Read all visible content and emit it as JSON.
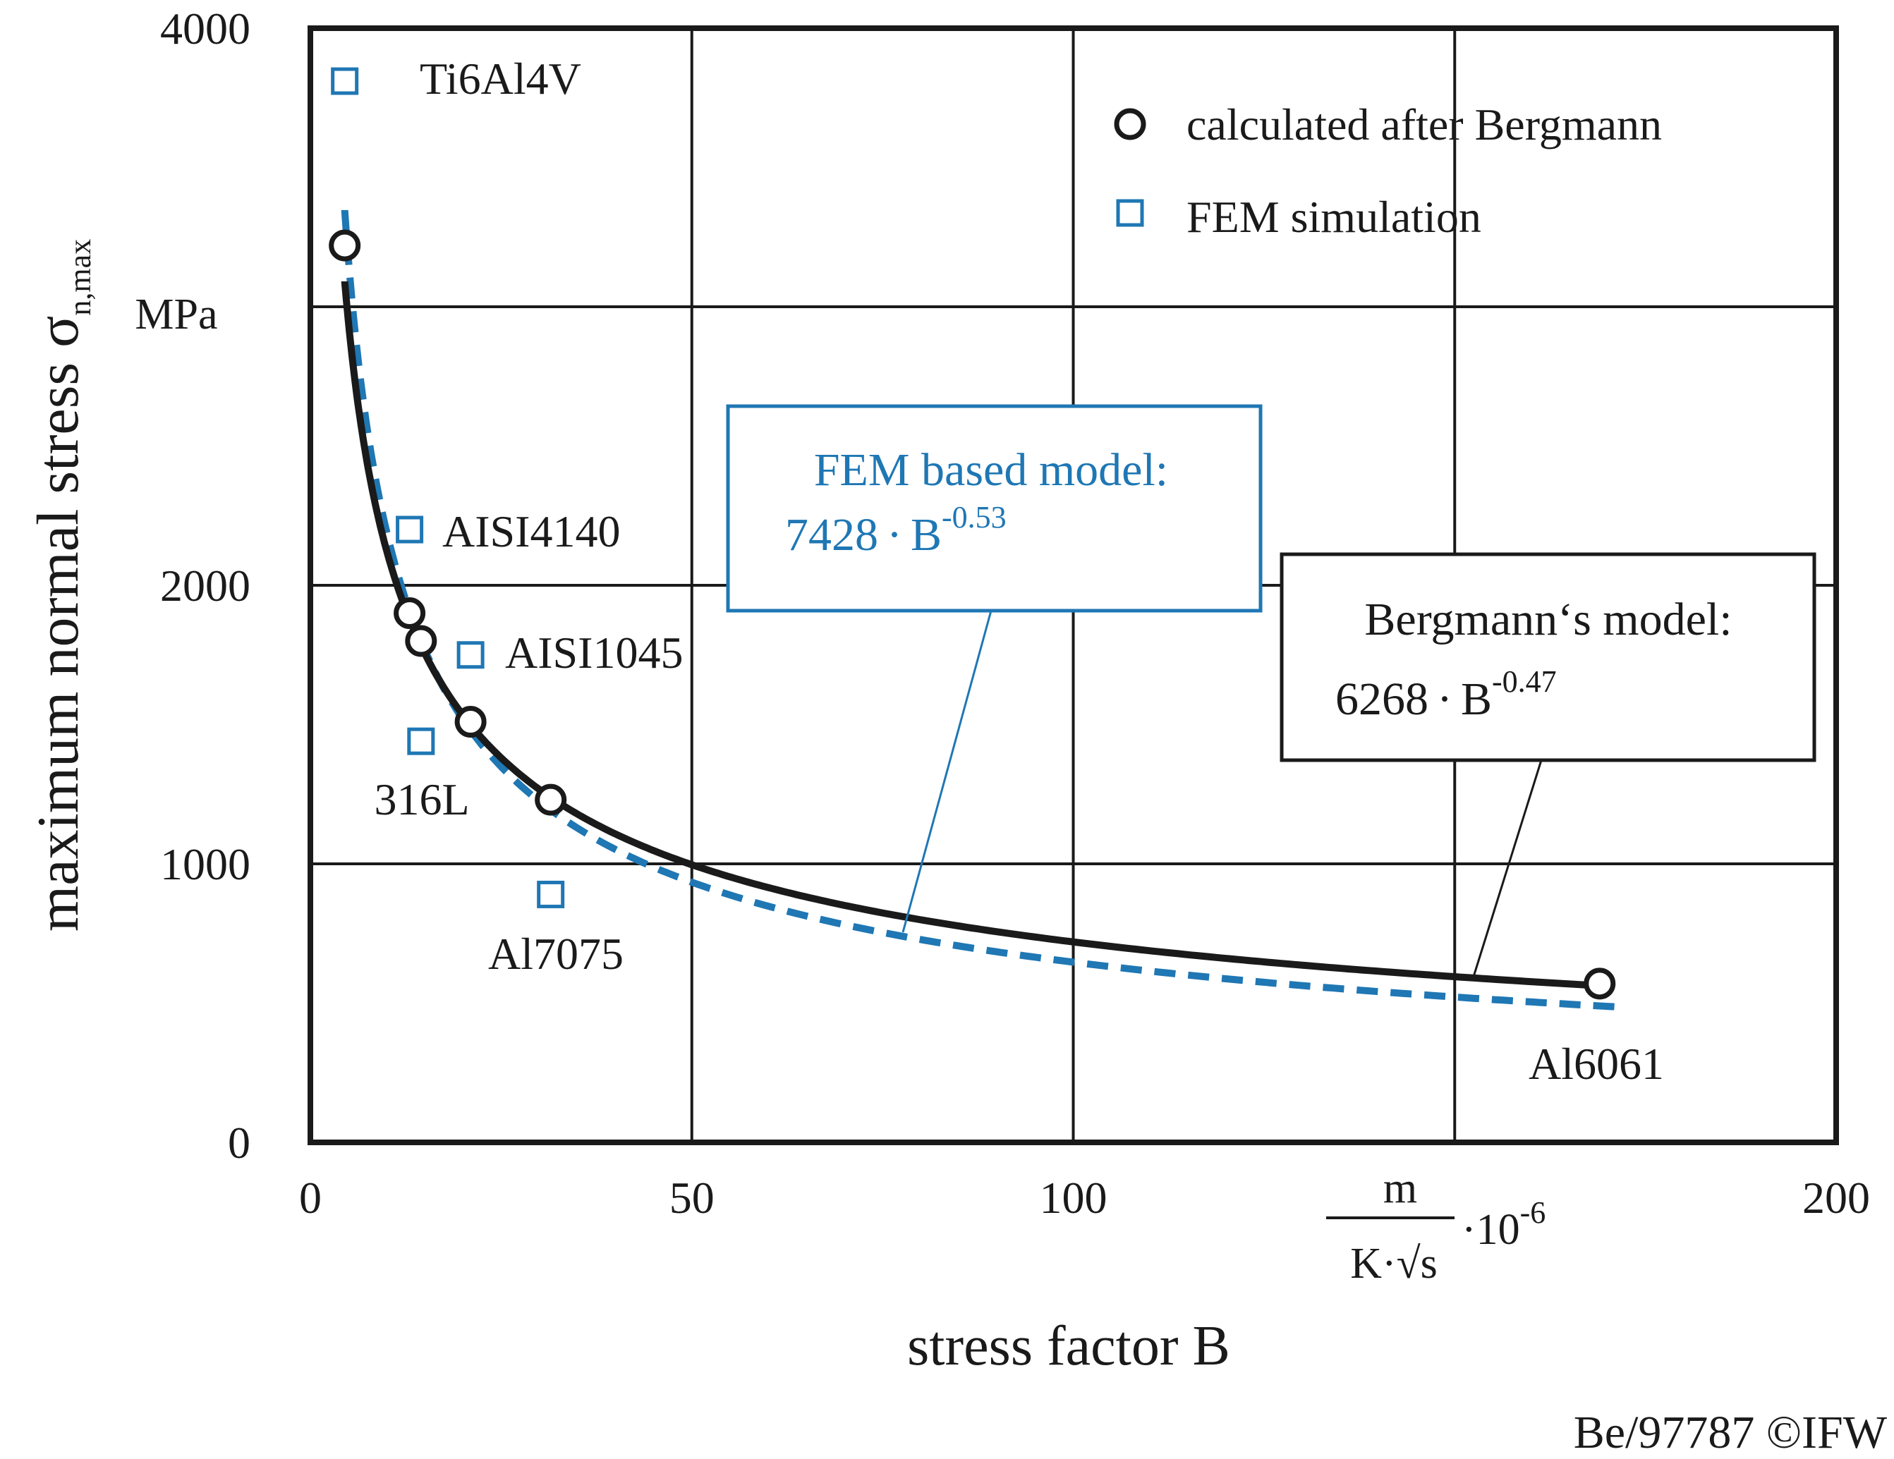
{
  "chart_data": {
    "type": "line",
    "title": "",
    "xlabel": "stress factor B",
    "x_unit": {
      "numerator": "m",
      "denominator": "K·√s",
      "scale": "·10",
      "exponent": "-6"
    },
    "ylabel_main": "maximum normal stress σ",
    "ylabel_sub": "n,max",
    "y_unit": "MPa",
    "xlim": [
      0,
      200
    ],
    "ylim": [
      0,
      4000
    ],
    "xticks": [
      "0",
      "50",
      "100",
      "200"
    ],
    "yticks": [
      "0",
      "1000",
      "2000",
      "4000"
    ],
    "grid": true,
    "legend": [
      {
        "label": "calculated after Bergmann",
        "marker": "circle",
        "color": "#1a1a1a"
      },
      {
        "label": "FEM simulation",
        "marker": "square",
        "color": "#1f77b4"
      }
    ],
    "series": [
      {
        "name": "calculated after Bergmann",
        "marker": "circle",
        "points": [
          {
            "x": 4.5,
            "y": 3220
          },
          {
            "x": 13,
            "y": 1900
          },
          {
            "x": 14.5,
            "y": 1800
          },
          {
            "x": 21,
            "y": 1510
          },
          {
            "x": 31.5,
            "y": 1230
          },
          {
            "x": 169,
            "y": 570
          }
        ]
      },
      {
        "name": "FEM simulation",
        "marker": "square",
        "points": [
          {
            "x": 4.5,
            "y": 3810,
            "label": "Ti6Al4V"
          },
          {
            "x": 13,
            "y": 2200,
            "label": "AISI4140"
          },
          {
            "x": 21,
            "y": 1750,
            "label": "AISI1045"
          },
          {
            "x": 14.5,
            "y": 1440,
            "label": "316L"
          },
          {
            "x": 31.5,
            "y": 890,
            "label": "Al7075"
          },
          {
            "x": 169,
            "label": "Al6061"
          }
        ]
      }
    ],
    "models": [
      {
        "name": "FEM based model:",
        "coefficient": 7428,
        "exponent": -0.53,
        "coef_text": "7428",
        "exp_text": "-0.53",
        "color": "#1f77b4",
        "style": "dashed",
        "x_range": [
          4.5,
          171
        ]
      },
      {
        "name": "Bergmann‘s model:",
        "coefficient": 6268,
        "exponent": -0.47,
        "coef_text": "6268",
        "exp_text": "-0.47",
        "color": "#1a1a1a",
        "style": "solid",
        "x_range": [
          4.5,
          169
        ]
      }
    ],
    "credit": "Be/97787 ©IFW"
  }
}
